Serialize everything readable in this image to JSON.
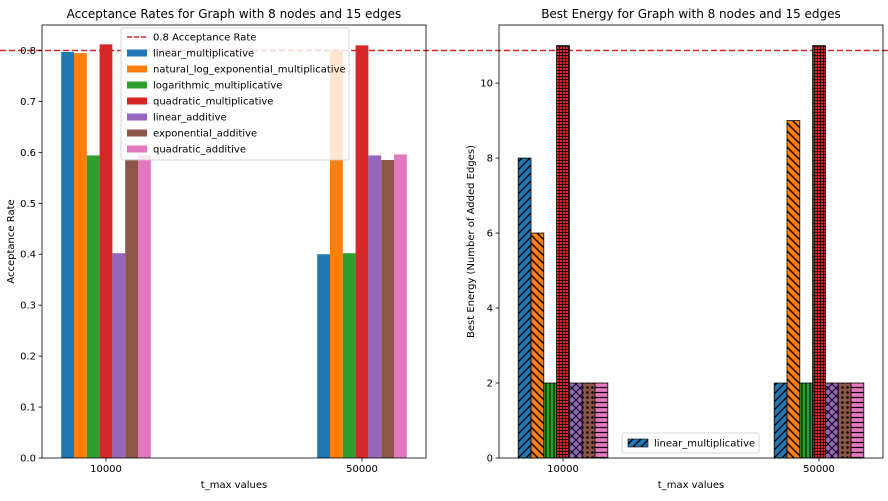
{
  "chart_data": [
    {
      "type": "bar",
      "title": "Acceptance Rates for Graph with 8 nodes and 15 edges",
      "xlabel": "t_max values",
      "ylabel": "Acceptance Rate",
      "categories": [
        "10000",
        "50000"
      ],
      "ylim": [
        0,
        0.85
      ],
      "yticks": [
        "0.0",
        "0.1",
        "0.2",
        "0.3",
        "0.4",
        "0.5",
        "0.6",
        "0.7",
        "0.8"
      ],
      "grid": false,
      "legend_position": "top-center",
      "reference_line": {
        "label": "0.8 Acceptance Rate",
        "y": 0.8,
        "color": "#d62728",
        "style": "dashed"
      },
      "series": [
        {
          "name": "linear_multiplicative",
          "color": "#1f77b4",
          "values": [
            0.797,
            0.4
          ]
        },
        {
          "name": "natural_log_exponential_multiplicative",
          "color": "#ff7f0e",
          "values": [
            0.795,
            0.8
          ]
        },
        {
          "name": "logarithmic_multiplicative",
          "color": "#2ca02c",
          "values": [
            0.594,
            0.402
          ]
        },
        {
          "name": "quadratic_multiplicative",
          "color": "#d62728",
          "values": [
            0.812,
            0.81
          ]
        },
        {
          "name": "linear_additive",
          "color": "#9467bd",
          "values": [
            0.402,
            0.594
          ]
        },
        {
          "name": "exponential_additive",
          "color": "#8c564b",
          "values": [
            0.587,
            0.585
          ]
        },
        {
          "name": "quadratic_additive",
          "color": "#e377c2",
          "values": [
            0.595,
            0.596
          ]
        }
      ]
    },
    {
      "type": "bar",
      "title": "Best Energy for Graph with 8 nodes and 15 edges",
      "xlabel": "t_max values",
      "ylabel": "Best Energy (Number of Added Edges)",
      "categories": [
        "10000",
        "50000"
      ],
      "ylim": [
        0,
        11.55
      ],
      "yticks": [
        "0",
        "2",
        "4",
        "6",
        "8",
        "10"
      ],
      "grid": false,
      "legend_position": "bottom-center",
      "legend_entries": [
        "linear_multiplicative"
      ],
      "series": [
        {
          "name": "linear_multiplicative",
          "color": "#1f77b4",
          "hatch": "diagonal",
          "values": [
            8,
            2
          ]
        },
        {
          "color": "#ff7f0e",
          "hatch": "backdiagonal",
          "values": [
            6,
            9
          ]
        },
        {
          "color": "#2ca02c",
          "hatch": "vertical",
          "values": [
            2,
            2
          ]
        },
        {
          "color": "#d62728",
          "hatch": "grid",
          "values": [
            11,
            11
          ]
        },
        {
          "color": "#9467bd",
          "hatch": "cross",
          "values": [
            2,
            2
          ]
        },
        {
          "color": "#8c564b",
          "hatch": "dots",
          "values": [
            2,
            2
          ]
        },
        {
          "color": "#e377c2",
          "hatch": "horizontal",
          "values": [
            2,
            2
          ]
        }
      ]
    }
  ]
}
